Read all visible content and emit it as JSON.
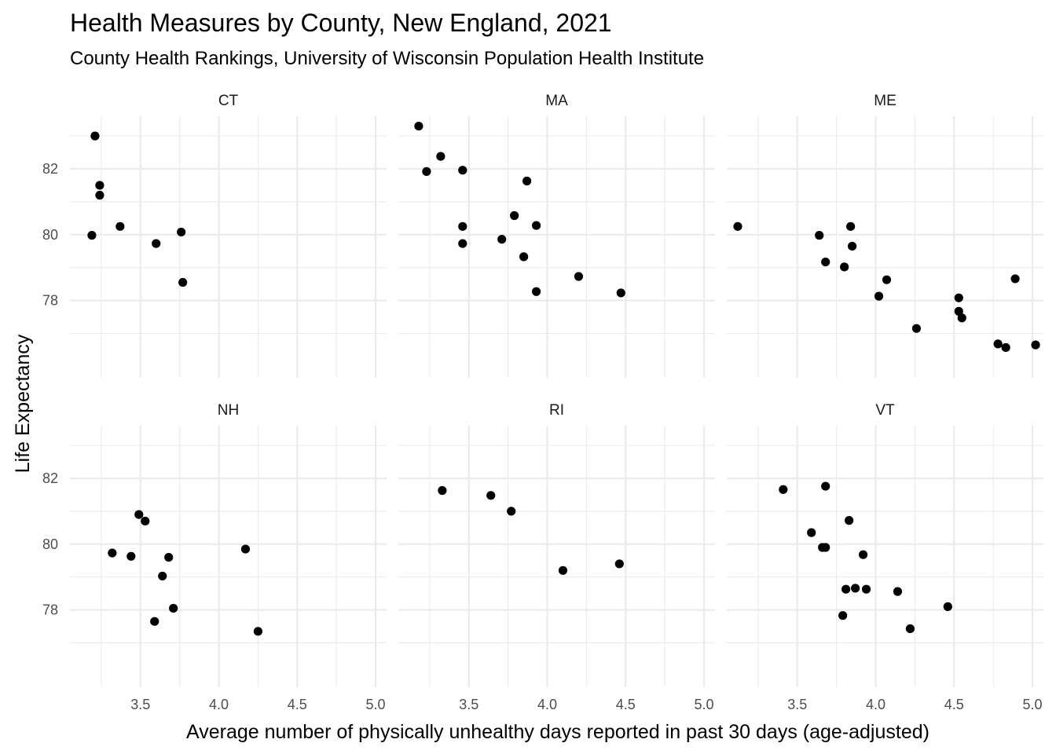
{
  "chart_data": {
    "type": "scatter",
    "title": "Health Measures by County, New England, 2021",
    "subtitle": "County Health Rankings, University of Wisconsin Population Health Institute",
    "xlabel": "Average number of physically unhealthy days reported in past 30 days (age-adjusted)",
    "ylabel": "Life Expectancy",
    "xlim": [
      3.05,
      5.07
    ],
    "ylim": [
      75.65,
      83.6
    ],
    "x_ticks": [
      3.5,
      4.0,
      4.5,
      5.0
    ],
    "x_tick_labels": [
      "3.5",
      "4.0",
      "4.5",
      "5.0"
    ],
    "x_minor": [
      3.25,
      3.75,
      4.25,
      4.75
    ],
    "y_ticks": [
      78,
      80,
      82
    ],
    "y_tick_labels": [
      "78",
      "80",
      "82"
    ],
    "y_minor": [
      77,
      79,
      81,
      83
    ],
    "grid": true,
    "facet_layout": {
      "rows": 2,
      "cols": 3
    },
    "panels": [
      {
        "strip": "CT",
        "points": [
          {
            "x": 3.21,
            "y": 83.0
          },
          {
            "x": 3.24,
            "y": 81.5
          },
          {
            "x": 3.24,
            "y": 81.2
          },
          {
            "x": 3.37,
            "y": 80.25
          },
          {
            "x": 3.19,
            "y": 79.98
          },
          {
            "x": 3.6,
            "y": 79.73
          },
          {
            "x": 3.76,
            "y": 80.08
          },
          {
            "x": 3.77,
            "y": 78.55
          }
        ]
      },
      {
        "strip": "MA",
        "points": [
          {
            "x": 3.18,
            "y": 83.3
          },
          {
            "x": 3.32,
            "y": 82.38
          },
          {
            "x": 3.23,
            "y": 81.92
          },
          {
            "x": 3.46,
            "y": 81.96
          },
          {
            "x": 3.87,
            "y": 81.63
          },
          {
            "x": 3.79,
            "y": 80.58
          },
          {
            "x": 3.46,
            "y": 80.25
          },
          {
            "x": 3.93,
            "y": 80.28
          },
          {
            "x": 3.46,
            "y": 79.73
          },
          {
            "x": 3.71,
            "y": 79.86
          },
          {
            "x": 3.85,
            "y": 79.33
          },
          {
            "x": 4.2,
            "y": 78.73
          },
          {
            "x": 3.93,
            "y": 78.27
          },
          {
            "x": 4.47,
            "y": 78.23
          }
        ]
      },
      {
        "strip": "ME",
        "points": [
          {
            "x": 3.12,
            "y": 80.25
          },
          {
            "x": 3.64,
            "y": 79.98
          },
          {
            "x": 3.84,
            "y": 80.25
          },
          {
            "x": 3.85,
            "y": 79.65
          },
          {
            "x": 3.68,
            "y": 79.17
          },
          {
            "x": 3.8,
            "y": 79.02
          },
          {
            "x": 4.07,
            "y": 78.63
          },
          {
            "x": 4.02,
            "y": 78.13
          },
          {
            "x": 4.53,
            "y": 78.08
          },
          {
            "x": 4.89,
            "y": 78.66
          },
          {
            "x": 4.53,
            "y": 77.67
          },
          {
            "x": 4.55,
            "y": 77.47
          },
          {
            "x": 4.26,
            "y": 77.15
          },
          {
            "x": 4.78,
            "y": 76.68
          },
          {
            "x": 4.83,
            "y": 76.57
          },
          {
            "x": 5.02,
            "y": 76.65
          }
        ]
      },
      {
        "strip": "NH",
        "points": [
          {
            "x": 3.49,
            "y": 80.9
          },
          {
            "x": 3.53,
            "y": 80.7
          },
          {
            "x": 3.32,
            "y": 79.73
          },
          {
            "x": 3.44,
            "y": 79.63
          },
          {
            "x": 3.68,
            "y": 79.6
          },
          {
            "x": 4.17,
            "y": 79.85
          },
          {
            "x": 3.64,
            "y": 79.03
          },
          {
            "x": 3.71,
            "y": 78.05
          },
          {
            "x": 3.59,
            "y": 77.65
          },
          {
            "x": 4.25,
            "y": 77.35
          }
        ]
      },
      {
        "strip": "RI",
        "points": [
          {
            "x": 3.33,
            "y": 81.63
          },
          {
            "x": 3.64,
            "y": 81.48
          },
          {
            "x": 3.77,
            "y": 81.0
          },
          {
            "x": 4.1,
            "y": 79.2
          },
          {
            "x": 4.46,
            "y": 79.4
          }
        ]
      },
      {
        "strip": "VT",
        "points": [
          {
            "x": 3.41,
            "y": 81.66
          },
          {
            "x": 3.68,
            "y": 81.76
          },
          {
            "x": 3.83,
            "y": 80.72
          },
          {
            "x": 3.59,
            "y": 80.35
          },
          {
            "x": 3.66,
            "y": 79.9
          },
          {
            "x": 3.68,
            "y": 79.9
          },
          {
            "x": 3.92,
            "y": 79.68
          },
          {
            "x": 3.81,
            "y": 78.63
          },
          {
            "x": 3.87,
            "y": 78.66
          },
          {
            "x": 3.94,
            "y": 78.63
          },
          {
            "x": 4.14,
            "y": 78.56
          },
          {
            "x": 3.79,
            "y": 77.83
          },
          {
            "x": 4.46,
            "y": 78.1
          },
          {
            "x": 4.22,
            "y": 77.43
          }
        ]
      }
    ]
  }
}
